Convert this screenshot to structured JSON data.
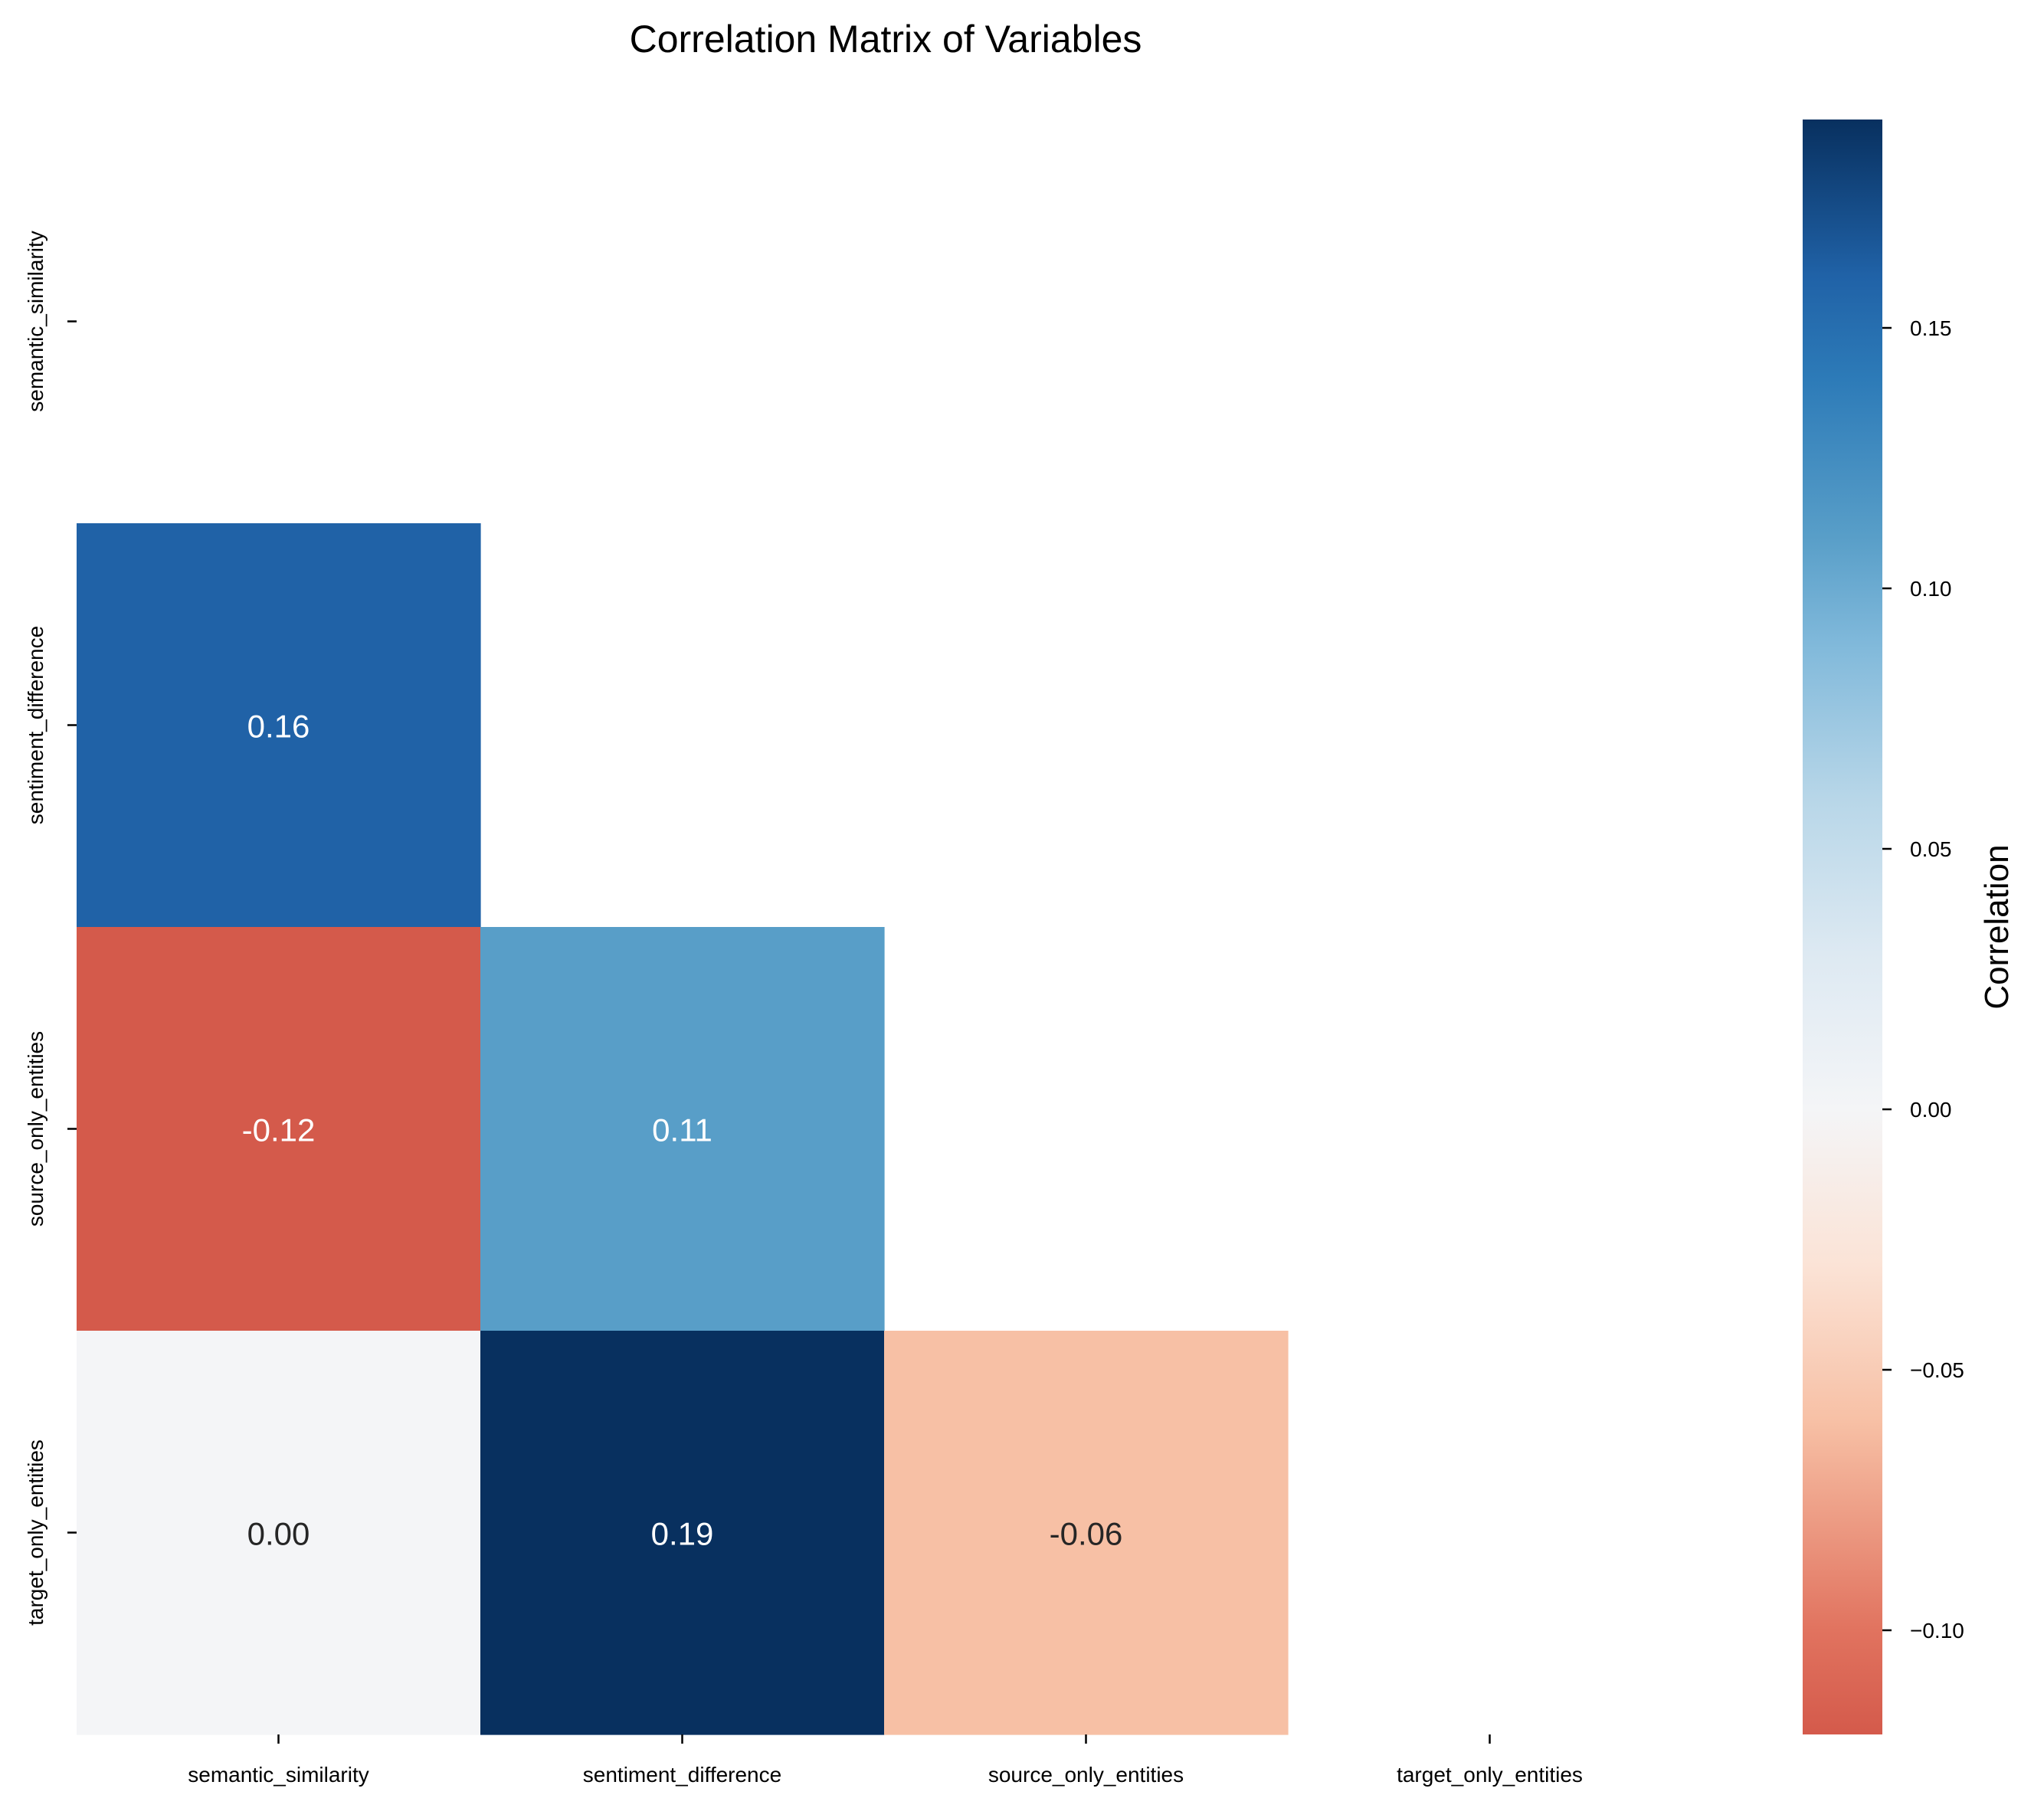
{
  "chart_data": {
    "type": "heatmap",
    "title": "Correlation Matrix of Variables",
    "row_labels": [
      "semantic_similarity",
      "sentiment_difference",
      "source_only_entities",
      "target_only_entities"
    ],
    "col_labels": [
      "semantic_similarity",
      "sentiment_difference",
      "source_only_entities",
      "target_only_entities"
    ],
    "mask": "upper triangle including diagonal",
    "cells": [
      {
        "row": 1,
        "col": 0,
        "value": 0.16,
        "label": "0.16",
        "color": "#2062a7",
        "text_color": "#ffffff"
      },
      {
        "row": 2,
        "col": 0,
        "value": -0.12,
        "label": "-0.12",
        "color": "#d45a4b",
        "text_color": "#ffffff"
      },
      {
        "row": 2,
        "col": 1,
        "value": 0.11,
        "label": "0.11",
        "color": "#589ec8",
        "text_color": "#ffffff"
      },
      {
        "row": 3,
        "col": 0,
        "value": 0.0,
        "label": "0.00",
        "color": "#f4f5f7",
        "text_color": "#262626"
      },
      {
        "row": 3,
        "col": 1,
        "value": 0.19,
        "label": "0.19",
        "color": "#08305f",
        "text_color": "#ffffff"
      },
      {
        "row": 3,
        "col": 2,
        "value": -0.06,
        "label": "-0.06",
        "color": "#f7c0a5",
        "text_color": "#262626"
      }
    ],
    "colorbar": {
      "label": "Correlation",
      "range": [
        -0.12,
        0.19
      ],
      "ticks": [
        {
          "value": 0.15,
          "label": "0.15"
        },
        {
          "value": 0.1,
          "label": "0.10"
        },
        {
          "value": 0.05,
          "label": "0.05"
        },
        {
          "value": 0.0,
          "label": "0.00"
        },
        {
          "value": -0.05,
          "label": "−0.05"
        },
        {
          "value": -0.1,
          "label": "−0.10"
        }
      ],
      "gradient": [
        {
          "value": -0.12,
          "color": "#d45a4b"
        },
        {
          "value": -0.1,
          "color": "#e1735f"
        },
        {
          "value": -0.06,
          "color": "#f7c0a5"
        },
        {
          "value": -0.03,
          "color": "#fbe3d6"
        },
        {
          "value": 0.0,
          "color": "#f4f5f7"
        },
        {
          "value": 0.03,
          "color": "#dde9f2"
        },
        {
          "value": 0.06,
          "color": "#b7d6e8"
        },
        {
          "value": 0.09,
          "color": "#7fb8da"
        },
        {
          "value": 0.11,
          "color": "#589ec8"
        },
        {
          "value": 0.14,
          "color": "#2d7bb8"
        },
        {
          "value": 0.16,
          "color": "#2062a7"
        },
        {
          "value": 0.19,
          "color": "#08305f"
        }
      ]
    }
  }
}
